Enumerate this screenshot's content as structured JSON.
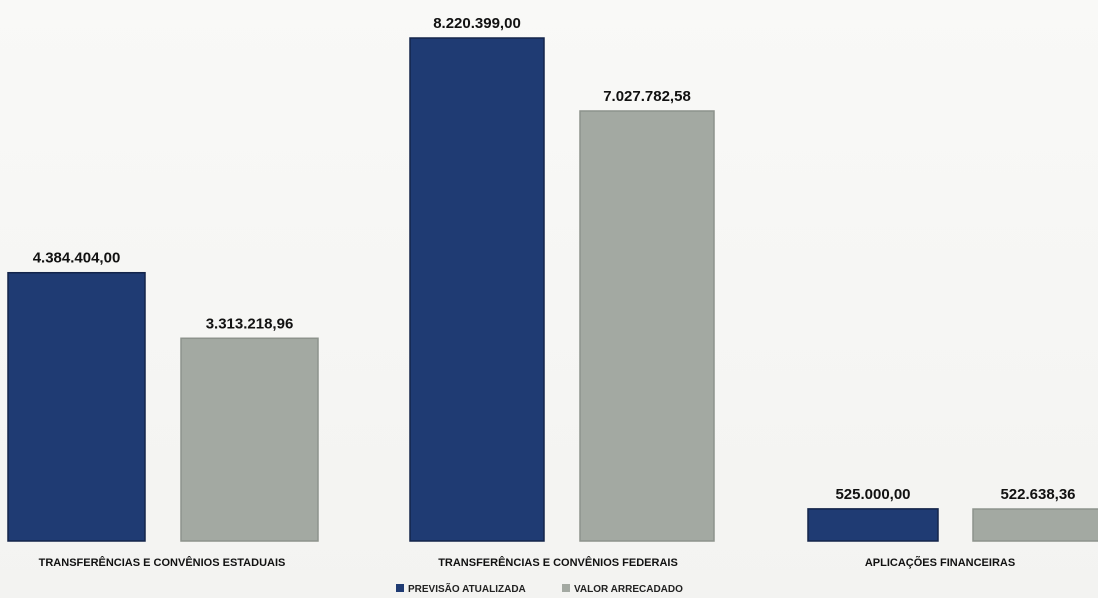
{
  "chart_data": {
    "type": "bar",
    "categories": [
      "TRANSFERÊNCIAS E CONVÊNIOS ESTADUAIS",
      "TRANSFERÊNCIAS E CONVÊNIOS FEDERAIS",
      "APLICAÇÕES FINANCEIRAS"
    ],
    "series": [
      {
        "name": "PREVISÃO ATUALIZADA",
        "color": "#1f3b73",
        "values": [
          4384404.0,
          8220399.0,
          525000.0
        ],
        "labels": [
          "4.384.404,00",
          "8.220.399,00",
          "525.000,00"
        ]
      },
      {
        "name": "VALOR ARRECADADO",
        "color": "#a3a9a2",
        "values": [
          3313218.96,
          7027782.58,
          522638.36
        ],
        "labels": [
          "3.313.218,96",
          "7.027.782,58",
          "522.638,36"
        ]
      }
    ],
    "ylim": [
      0,
      8600000
    ],
    "grid": false,
    "legend": "bottom-center"
  }
}
